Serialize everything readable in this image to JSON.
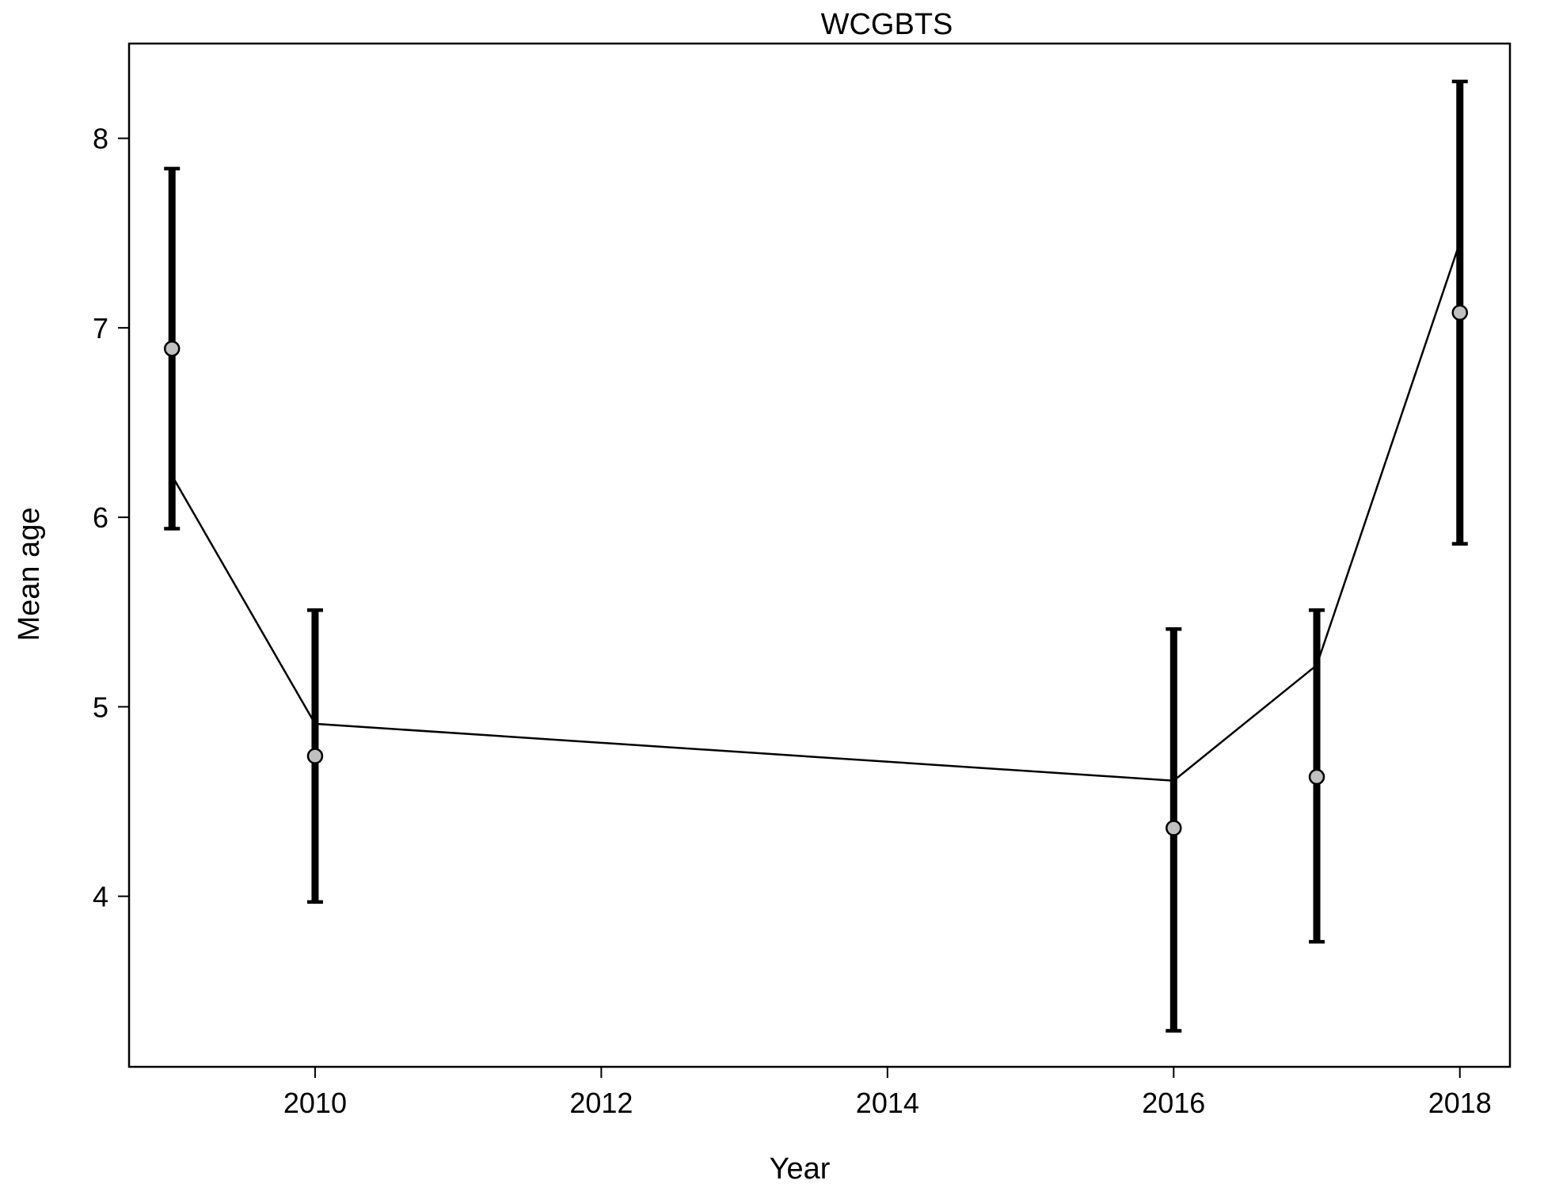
{
  "chart_data": {
    "type": "scatter",
    "title": "WCGBTS",
    "xlabel": "Year",
    "ylabel": "Mean age",
    "xlim": [
      2008.7,
      2018.35
    ],
    "ylim": [
      3.1,
      8.5
    ],
    "xticks": [
      2010,
      2012,
      2014,
      2016,
      2018
    ],
    "yticks": [
      4,
      5,
      6,
      7,
      8
    ],
    "grid": false,
    "series": [
      {
        "kind": "observed",
        "x": [
          2009,
          2010,
          2016,
          2017,
          2018
        ],
        "y": [
          6.89,
          4.74,
          4.36,
          4.63,
          7.08
        ],
        "lower": [
          5.94,
          3.97,
          3.29,
          3.76,
          5.86
        ],
        "upper": [
          7.84,
          5.51,
          5.41,
          5.51,
          8.3
        ]
      },
      {
        "kind": "expected",
        "x": [
          2009,
          2010,
          2016,
          2017,
          2018
        ],
        "y": [
          6.22,
          4.91,
          4.61,
          5.22,
          7.45
        ]
      }
    ]
  }
}
